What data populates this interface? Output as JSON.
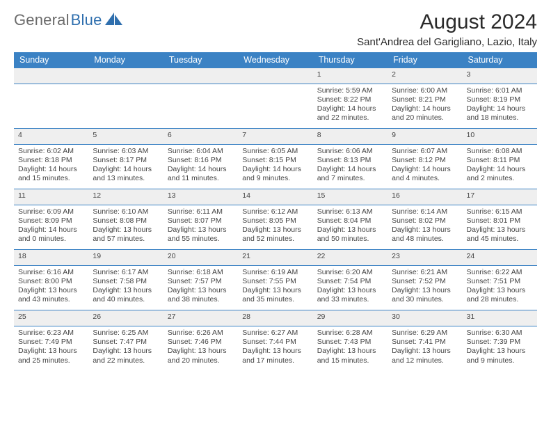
{
  "brand": {
    "part1": "General",
    "part2": "Blue"
  },
  "title": "August 2024",
  "subtitle": "Sant'Andrea del Garigliano, Lazio, Italy",
  "colors": {
    "accent": "#3b82c4",
    "header_bg": "#3b82c4",
    "daynum_bg": "#efefef",
    "divider": "#3b82c4",
    "text": "#333333",
    "muted": "#444444",
    "background": "#ffffff"
  },
  "weekdays": [
    "Sunday",
    "Monday",
    "Tuesday",
    "Wednesday",
    "Thursday",
    "Friday",
    "Saturday"
  ],
  "weeks": [
    {
      "days": [
        {
          "num": "",
          "sunrise": "",
          "sunset": "",
          "daylight": ""
        },
        {
          "num": "",
          "sunrise": "",
          "sunset": "",
          "daylight": ""
        },
        {
          "num": "",
          "sunrise": "",
          "sunset": "",
          "daylight": ""
        },
        {
          "num": "",
          "sunrise": "",
          "sunset": "",
          "daylight": ""
        },
        {
          "num": "1",
          "sunrise": "Sunrise: 5:59 AM",
          "sunset": "Sunset: 8:22 PM",
          "daylight": "Daylight: 14 hours and 22 minutes."
        },
        {
          "num": "2",
          "sunrise": "Sunrise: 6:00 AM",
          "sunset": "Sunset: 8:21 PM",
          "daylight": "Daylight: 14 hours and 20 minutes."
        },
        {
          "num": "3",
          "sunrise": "Sunrise: 6:01 AM",
          "sunset": "Sunset: 8:19 PM",
          "daylight": "Daylight: 14 hours and 18 minutes."
        }
      ]
    },
    {
      "days": [
        {
          "num": "4",
          "sunrise": "Sunrise: 6:02 AM",
          "sunset": "Sunset: 8:18 PM",
          "daylight": "Daylight: 14 hours and 15 minutes."
        },
        {
          "num": "5",
          "sunrise": "Sunrise: 6:03 AM",
          "sunset": "Sunset: 8:17 PM",
          "daylight": "Daylight: 14 hours and 13 minutes."
        },
        {
          "num": "6",
          "sunrise": "Sunrise: 6:04 AM",
          "sunset": "Sunset: 8:16 PM",
          "daylight": "Daylight: 14 hours and 11 minutes."
        },
        {
          "num": "7",
          "sunrise": "Sunrise: 6:05 AM",
          "sunset": "Sunset: 8:15 PM",
          "daylight": "Daylight: 14 hours and 9 minutes."
        },
        {
          "num": "8",
          "sunrise": "Sunrise: 6:06 AM",
          "sunset": "Sunset: 8:13 PM",
          "daylight": "Daylight: 14 hours and 7 minutes."
        },
        {
          "num": "9",
          "sunrise": "Sunrise: 6:07 AM",
          "sunset": "Sunset: 8:12 PM",
          "daylight": "Daylight: 14 hours and 4 minutes."
        },
        {
          "num": "10",
          "sunrise": "Sunrise: 6:08 AM",
          "sunset": "Sunset: 8:11 PM",
          "daylight": "Daylight: 14 hours and 2 minutes."
        }
      ]
    },
    {
      "days": [
        {
          "num": "11",
          "sunrise": "Sunrise: 6:09 AM",
          "sunset": "Sunset: 8:09 PM",
          "daylight": "Daylight: 14 hours and 0 minutes."
        },
        {
          "num": "12",
          "sunrise": "Sunrise: 6:10 AM",
          "sunset": "Sunset: 8:08 PM",
          "daylight": "Daylight: 13 hours and 57 minutes."
        },
        {
          "num": "13",
          "sunrise": "Sunrise: 6:11 AM",
          "sunset": "Sunset: 8:07 PM",
          "daylight": "Daylight: 13 hours and 55 minutes."
        },
        {
          "num": "14",
          "sunrise": "Sunrise: 6:12 AM",
          "sunset": "Sunset: 8:05 PM",
          "daylight": "Daylight: 13 hours and 52 minutes."
        },
        {
          "num": "15",
          "sunrise": "Sunrise: 6:13 AM",
          "sunset": "Sunset: 8:04 PM",
          "daylight": "Daylight: 13 hours and 50 minutes."
        },
        {
          "num": "16",
          "sunrise": "Sunrise: 6:14 AM",
          "sunset": "Sunset: 8:02 PM",
          "daylight": "Daylight: 13 hours and 48 minutes."
        },
        {
          "num": "17",
          "sunrise": "Sunrise: 6:15 AM",
          "sunset": "Sunset: 8:01 PM",
          "daylight": "Daylight: 13 hours and 45 minutes."
        }
      ]
    },
    {
      "days": [
        {
          "num": "18",
          "sunrise": "Sunrise: 6:16 AM",
          "sunset": "Sunset: 8:00 PM",
          "daylight": "Daylight: 13 hours and 43 minutes."
        },
        {
          "num": "19",
          "sunrise": "Sunrise: 6:17 AM",
          "sunset": "Sunset: 7:58 PM",
          "daylight": "Daylight: 13 hours and 40 minutes."
        },
        {
          "num": "20",
          "sunrise": "Sunrise: 6:18 AM",
          "sunset": "Sunset: 7:57 PM",
          "daylight": "Daylight: 13 hours and 38 minutes."
        },
        {
          "num": "21",
          "sunrise": "Sunrise: 6:19 AM",
          "sunset": "Sunset: 7:55 PM",
          "daylight": "Daylight: 13 hours and 35 minutes."
        },
        {
          "num": "22",
          "sunrise": "Sunrise: 6:20 AM",
          "sunset": "Sunset: 7:54 PM",
          "daylight": "Daylight: 13 hours and 33 minutes."
        },
        {
          "num": "23",
          "sunrise": "Sunrise: 6:21 AM",
          "sunset": "Sunset: 7:52 PM",
          "daylight": "Daylight: 13 hours and 30 minutes."
        },
        {
          "num": "24",
          "sunrise": "Sunrise: 6:22 AM",
          "sunset": "Sunset: 7:51 PM",
          "daylight": "Daylight: 13 hours and 28 minutes."
        }
      ]
    },
    {
      "days": [
        {
          "num": "25",
          "sunrise": "Sunrise: 6:23 AM",
          "sunset": "Sunset: 7:49 PM",
          "daylight": "Daylight: 13 hours and 25 minutes."
        },
        {
          "num": "26",
          "sunrise": "Sunrise: 6:25 AM",
          "sunset": "Sunset: 7:47 PM",
          "daylight": "Daylight: 13 hours and 22 minutes."
        },
        {
          "num": "27",
          "sunrise": "Sunrise: 6:26 AM",
          "sunset": "Sunset: 7:46 PM",
          "daylight": "Daylight: 13 hours and 20 minutes."
        },
        {
          "num": "28",
          "sunrise": "Sunrise: 6:27 AM",
          "sunset": "Sunset: 7:44 PM",
          "daylight": "Daylight: 13 hours and 17 minutes."
        },
        {
          "num": "29",
          "sunrise": "Sunrise: 6:28 AM",
          "sunset": "Sunset: 7:43 PM",
          "daylight": "Daylight: 13 hours and 15 minutes."
        },
        {
          "num": "30",
          "sunrise": "Sunrise: 6:29 AM",
          "sunset": "Sunset: 7:41 PM",
          "daylight": "Daylight: 13 hours and 12 minutes."
        },
        {
          "num": "31",
          "sunrise": "Sunrise: 6:30 AM",
          "sunset": "Sunset: 7:39 PM",
          "daylight": "Daylight: 13 hours and 9 minutes."
        }
      ]
    }
  ]
}
